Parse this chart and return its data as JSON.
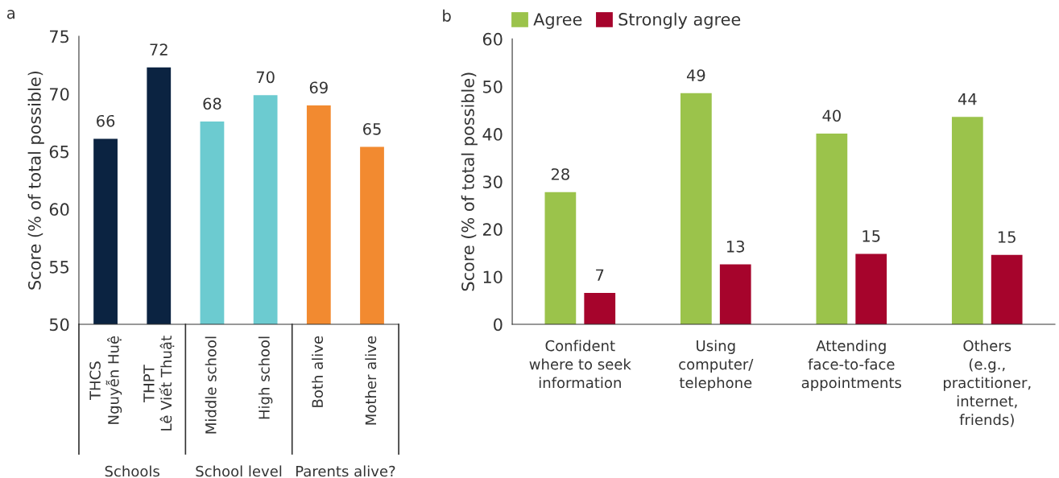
{
  "chart_data": [
    {
      "type": "bar",
      "title": "a",
      "ylabel": "Score (% of total possible)",
      "categories": [
        "THCS\nNguyễn Huệ",
        "THPT\nLê Viết Thuật",
        "Middle school",
        "High school",
        "Both alive",
        "Mother alive"
      ],
      "values": [
        66.1,
        72.3,
        67.6,
        69.9,
        69.0,
        65.4
      ],
      "colors": [
        "#0b2341",
        "#0b2341",
        "#6ccbd0",
        "#6ccbd0",
        "#f28a30",
        "#f28a30"
      ],
      "value_labels": [
        "66",
        "72",
        "68",
        "70",
        "69",
        "65"
      ],
      "ylim": [
        50,
        75
      ],
      "yticks": [
        50,
        55,
        60,
        65,
        70,
        75
      ],
      "annotations": [
        "Schools",
        "School level",
        "Parents alive?"
      ],
      "grid": false,
      "legend": false
    },
    {
      "type": "bar",
      "title": "b",
      "ylabel": "Score (% of total possible)",
      "categories": [
        "Confident\nwhere to seek\ninformation",
        "Using\ncomputer/\ntelephone",
        "Attending\nface-to-face\nappointments",
        "Others\n(e.g.,\npractitioner,\ninternet,\nfriends)"
      ],
      "series": [
        {
          "name": "Agree",
          "color": "#9bc34b",
          "values": [
            27.8,
            48.6,
            40.1,
            43.6
          ],
          "value_labels": [
            "28",
            "49",
            "40",
            "44"
          ]
        },
        {
          "name": "Strongly agree",
          "color": "#a6042c",
          "values": [
            6.6,
            12.6,
            14.8,
            14.6
          ],
          "value_labels": [
            "7",
            "13",
            "15",
            "15"
          ]
        }
      ],
      "ylim": [
        0,
        60
      ],
      "yticks": [
        0,
        10,
        20,
        30,
        40,
        50,
        60
      ],
      "grid": false,
      "legend": "top left"
    }
  ]
}
